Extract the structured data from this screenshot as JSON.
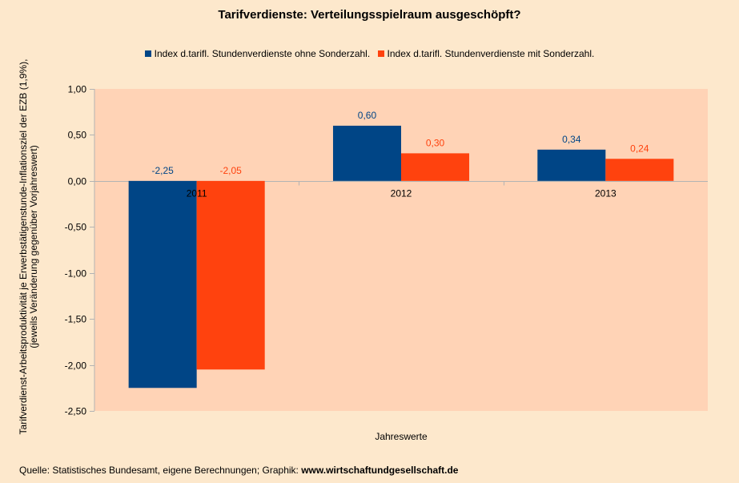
{
  "title": "Tarifverdienste: Verteilungsspielraum ausgeschöpft?",
  "footer": {
    "source": "Quelle: Statistisches Bundesamt, eigene Berechnungen; Graphik: ",
    "site": "www.wirtschaftundgesellschaft.de"
  },
  "chart_data": {
    "type": "bar",
    "title": "Tarifverdienste: Verteilungsspielraum ausgeschöpft?",
    "xlabel": "Jahreswerte",
    "ylabel_line1": "Tarifverdienst-Arbeitsproduktivität je Erwerbstätigenstunde-Inflationsziel der EZB (1,9%),",
    "ylabel_line2": "(jeweils Veränderung gegenüber Vorjahreswert)",
    "categories": [
      "2011",
      "2012",
      "2013"
    ],
    "series": [
      {
        "name": "Index d.tarifl. Stundenverdienste ohne Sonderzahl.",
        "color": "#004586",
        "values": [
          -2.25,
          0.6,
          0.34
        ],
        "labels": [
          "-2,25",
          "0,60",
          "0,34"
        ]
      },
      {
        "name": "Index d.tarifl. Stundenverdienste mit Sonderzahl.",
        "color": "#ff420e",
        "values": [
          -2.05,
          0.3,
          0.24
        ],
        "labels": [
          "-2,05",
          "0,30",
          "0,24"
        ]
      }
    ],
    "ylim": [
      -2.5,
      1.0
    ],
    "yticks": [
      1.0,
      0.5,
      0.0,
      -0.5,
      -1.0,
      -1.5,
      -2.0,
      -2.5
    ],
    "ytick_labels": [
      "1,00",
      "0,50",
      "0,00",
      "-0,50",
      "-1,00",
      "-1,50",
      "-2,00",
      "-2,50"
    ],
    "grid": false,
    "legend": "top",
    "plot_background": "#ffd3b6"
  }
}
